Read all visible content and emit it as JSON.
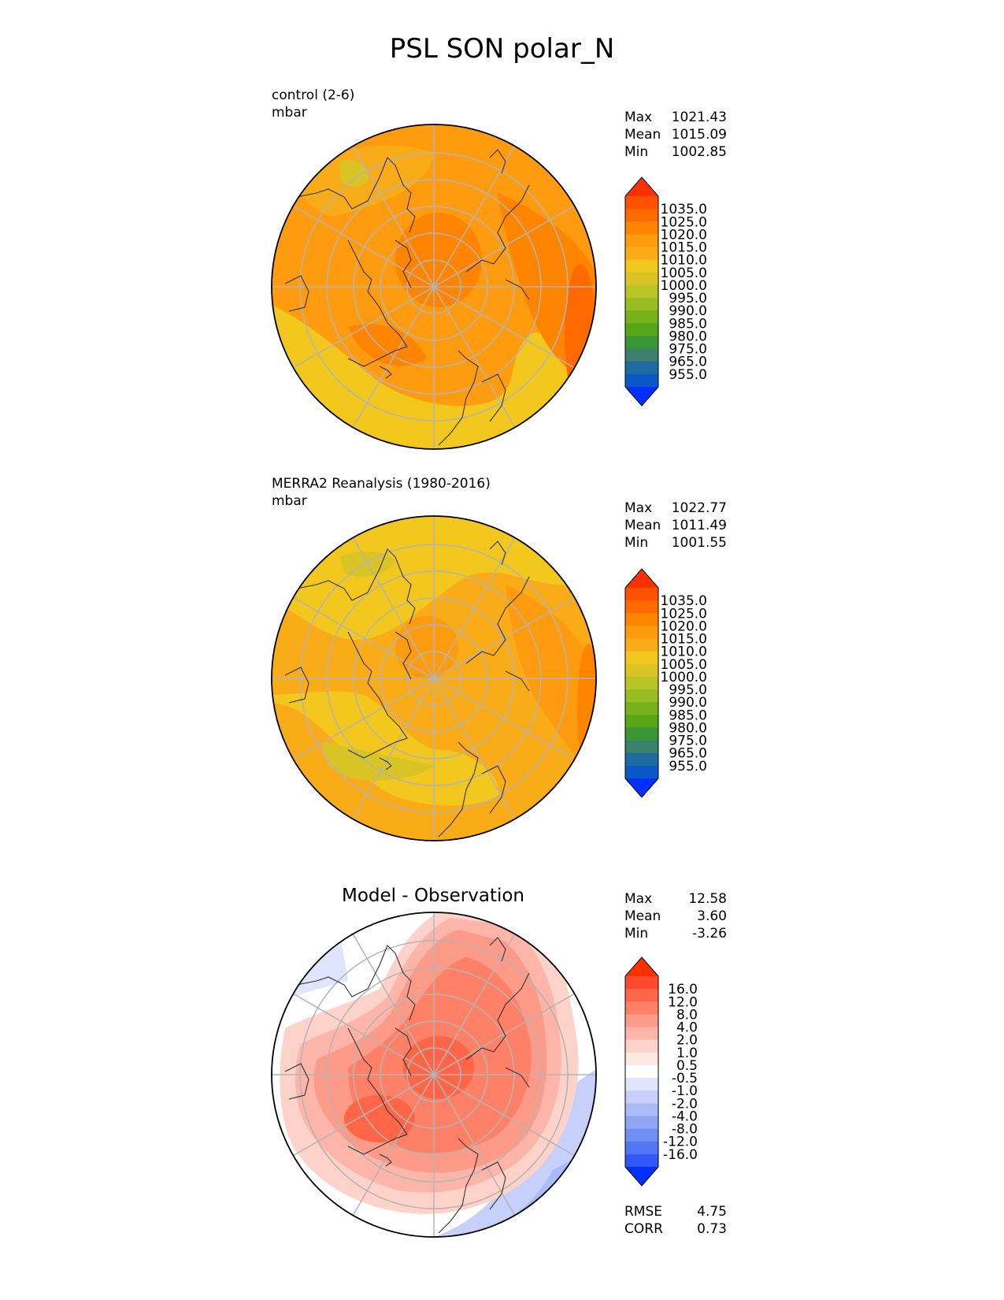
{
  "figure": {
    "title": "PSL SON polar_N"
  },
  "panels": [
    {
      "label": "control (2-6)",
      "units": "mbar",
      "stats": [
        {
          "name": "Max",
          "value": "1021.43"
        },
        {
          "name": "Mean",
          "value": "1015.09"
        },
        {
          "name": "Min",
          "value": "1002.85"
        }
      ]
    },
    {
      "label": "MERRA2 Reanalysis (1980-2016)",
      "units": "mbar",
      "stats": [
        {
          "name": "Max",
          "value": "1022.77"
        },
        {
          "name": "Mean",
          "value": "1011.49"
        },
        {
          "name": "Min",
          "value": "1001.55"
        }
      ]
    },
    {
      "title": "Model - Observation",
      "stats": [
        {
          "name": "Max",
          "value": "12.58"
        },
        {
          "name": "Mean",
          "value": "3.60"
        },
        {
          "name": "Min",
          "value": "-3.26"
        }
      ],
      "metrics": [
        {
          "name": "RMSE",
          "value": "4.75"
        },
        {
          "name": "CORR",
          "value": "0.73"
        }
      ]
    }
  ],
  "colorbars": {
    "field": {
      "labels": [
        "1035.0",
        "1025.0",
        "1020.0",
        "1015.0",
        "1010.0",
        "1005.0",
        "1000.0",
        "995.0",
        "990.0",
        "985.0",
        "980.0",
        "975.0",
        "965.0",
        "955.0"
      ],
      "colors_top_to_bottom": [
        "#ff3000",
        "#ff5200",
        "#ff6a00",
        "#ff8400",
        "#fe9b0f",
        "#faac18",
        "#f2c71e",
        "#d8c424",
        "#b9c426",
        "#98bd22",
        "#78b21a",
        "#56a618",
        "#3a9536",
        "#3a806c",
        "#1f6aa0",
        "#0a57c8",
        "#0030ff"
      ]
    },
    "diff": {
      "labels": [
        "16.0",
        "12.0",
        "8.0",
        "4.0",
        "2.0",
        "1.0",
        "0.5",
        "-0.5",
        "-1.0",
        "-2.0",
        "-4.0",
        "-8.0",
        "-12.0",
        "-16.0"
      ],
      "colors_top_to_bottom": [
        "#ff3000",
        "#ff4b2c",
        "#ff6648",
        "#fe8066",
        "#fd9b88",
        "#fcb5a8",
        "#fdd2c8",
        "#fde8e2",
        "#ffffff",
        "#e0e5fd",
        "#c6d0fb",
        "#abbbf8",
        "#8fa6f5",
        "#7190f3",
        "#5476f5",
        "#3458f8",
        "#0030ff"
      ]
    }
  }
}
